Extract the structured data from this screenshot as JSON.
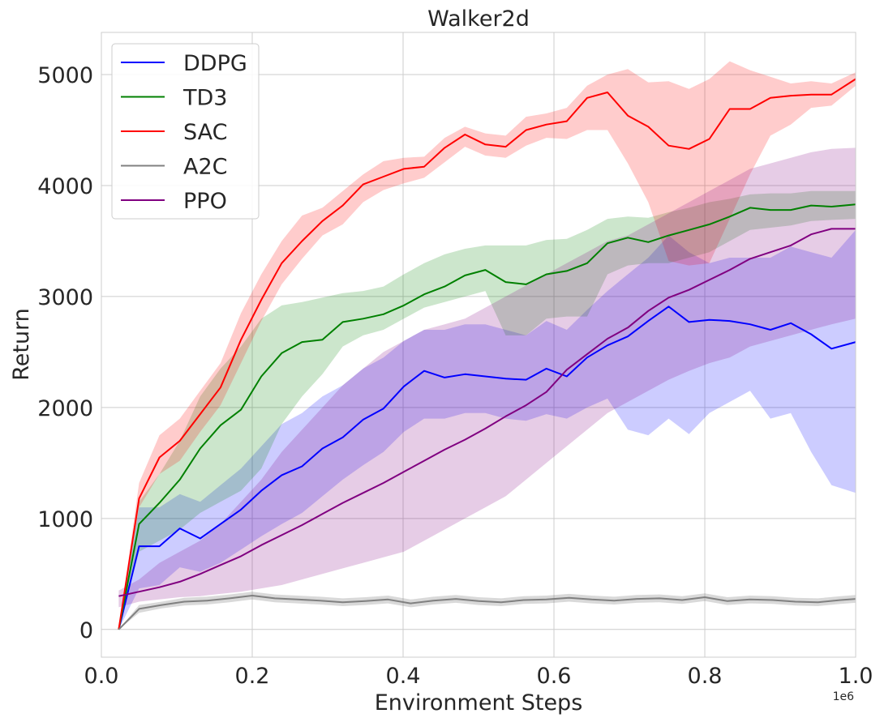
{
  "chart_data": {
    "type": "line",
    "title": "Walker2d",
    "xlabel": "Environment Steps",
    "ylabel": "Return",
    "x_offset_label": "1e6",
    "xlim": [
      0.0,
      1.0
    ],
    "ylim": [
      -250,
      5380
    ],
    "xticks": [
      0.0,
      0.2,
      0.4,
      0.6,
      0.8,
      1.0
    ],
    "xtick_labels": [
      "0.0",
      "0.2",
      "0.4",
      "0.6",
      "0.8",
      "1.0"
    ],
    "yticks": [
      0,
      1000,
      2000,
      3000,
      4000,
      5000
    ],
    "ytick_labels": [
      "0",
      "1000",
      "2000",
      "3000",
      "4000",
      "5000"
    ],
    "grid": true,
    "legend_position": "top-left",
    "colors": {
      "DDPG": "#0000ff",
      "TD3": "#008000",
      "SAC": "#ff0000",
      "A2C": "#808080",
      "PPO": "#800080"
    },
    "series": [
      {
        "name": "DDPG",
        "x": [
          0.023,
          0.05,
          0.077,
          0.104,
          0.131,
          0.158,
          0.185,
          0.212,
          0.239,
          0.266,
          0.293,
          0.32,
          0.347,
          0.374,
          0.401,
          0.428,
          0.455,
          0.482,
          0.509,
          0.536,
          0.563,
          0.59,
          0.617,
          0.644,
          0.671,
          0.698,
          0.725,
          0.752,
          0.779,
          0.806,
          0.833,
          0.86,
          0.887,
          0.914,
          0.941,
          0.968,
          1.0
        ],
        "mean": [
          0,
          750,
          750,
          910,
          820,
          950,
          1080,
          1250,
          1390,
          1470,
          1630,
          1730,
          1890,
          1990,
          2190,
          2330,
          2270,
          2300,
          2280,
          2260,
          2250,
          2350,
          2280,
          2450,
          2560,
          2640,
          2780,
          2910,
          2770,
          2790,
          2780,
          2750,
          2700,
          2760,
          2660,
          2530,
          2590
        ],
        "lower": [
          0,
          370,
          400,
          560,
          520,
          600,
          720,
          840,
          950,
          1050,
          1200,
          1350,
          1480,
          1600,
          1780,
          1900,
          1900,
          1950,
          1950,
          1900,
          1880,
          1940,
          1900,
          2000,
          2080,
          1800,
          1750,
          1900,
          1760,
          1950,
          2050,
          2150,
          1900,
          1950,
          1600,
          1300,
          1230
        ],
        "upper": [
          0,
          1100,
          1100,
          1220,
          1150,
          1300,
          1450,
          1650,
          1850,
          1950,
          2100,
          2200,
          2350,
          2450,
          2600,
          2700,
          2700,
          2750,
          2750,
          2700,
          2650,
          2780,
          2700,
          2880,
          3050,
          3200,
          3350,
          3550,
          3400,
          3300,
          3350,
          3350,
          3350,
          3450,
          3400,
          3350,
          3600
        ]
      },
      {
        "name": "TD3",
        "x": [
          0.023,
          0.05,
          0.077,
          0.104,
          0.131,
          0.158,
          0.185,
          0.212,
          0.239,
          0.266,
          0.293,
          0.32,
          0.347,
          0.374,
          0.401,
          0.428,
          0.455,
          0.482,
          0.509,
          0.536,
          0.563,
          0.59,
          0.617,
          0.644,
          0.671,
          0.698,
          0.725,
          0.752,
          0.779,
          0.806,
          0.833,
          0.86,
          0.887,
          0.914,
          0.941,
          0.968,
          1.0
        ],
        "mean": [
          0,
          950,
          1140,
          1350,
          1630,
          1840,
          1980,
          2280,
          2490,
          2590,
          2610,
          2770,
          2800,
          2840,
          2920,
          3020,
          3090,
          3190,
          3240,
          3130,
          3110,
          3200,
          3230,
          3300,
          3480,
          3530,
          3490,
          3550,
          3600,
          3650,
          3720,
          3800,
          3780,
          3780,
          3820,
          3810,
          3830
        ],
        "lower": [
          0,
          700,
          800,
          900,
          1050,
          1150,
          1250,
          1450,
          1850,
          2100,
          2300,
          2550,
          2650,
          2700,
          2800,
          2900,
          2950,
          3000,
          3050,
          2650,
          2650,
          2800,
          2820,
          2820,
          3200,
          3280,
          3300,
          3300,
          3350,
          3400,
          3500,
          3600,
          3620,
          3640,
          3680,
          3690,
          3700
        ],
        "upper": [
          0,
          1150,
          1400,
          1700,
          2100,
          2350,
          2550,
          2800,
          2920,
          2950,
          2990,
          3030,
          3050,
          3090,
          3200,
          3300,
          3380,
          3430,
          3460,
          3460,
          3460,
          3510,
          3520,
          3600,
          3700,
          3720,
          3710,
          3760,
          3800,
          3850,
          3880,
          3920,
          3930,
          3930,
          3950,
          3950,
          3950
        ]
      },
      {
        "name": "SAC",
        "x": [
          0.023,
          0.05,
          0.077,
          0.104,
          0.131,
          0.158,
          0.185,
          0.212,
          0.239,
          0.266,
          0.293,
          0.32,
          0.347,
          0.374,
          0.401,
          0.428,
          0.455,
          0.482,
          0.509,
          0.536,
          0.563,
          0.59,
          0.617,
          0.644,
          0.671,
          0.698,
          0.725,
          0.752,
          0.779,
          0.806,
          0.833,
          0.86,
          0.887,
          0.914,
          0.941,
          0.968,
          1.0
        ],
        "mean": [
          0,
          1180,
          1550,
          1700,
          1940,
          2180,
          2610,
          2970,
          3300,
          3500,
          3680,
          3820,
          4010,
          4080,
          4150,
          4170,
          4340,
          4460,
          4370,
          4350,
          4500,
          4550,
          4580,
          4790,
          4840,
          4630,
          4530,
          4360,
          4330,
          4420,
          4690,
          4690,
          4790,
          4810,
          4820,
          4820,
          4960
        ],
        "lower": [
          0,
          1100,
          1400,
          1520,
          1780,
          2020,
          2400,
          2780,
          3110,
          3340,
          3550,
          3650,
          3850,
          3960,
          4020,
          4070,
          4210,
          4350,
          4270,
          4250,
          4360,
          4430,
          4420,
          4500,
          4500,
          4200,
          3850,
          3320,
          3280,
          3300,
          3700,
          4100,
          4450,
          4550,
          4700,
          4720,
          4900
        ],
        "upper": [
          0,
          1320,
          1750,
          1900,
          2150,
          2400,
          2850,
          3200,
          3500,
          3730,
          3800,
          3950,
          4100,
          4220,
          4250,
          4260,
          4430,
          4530,
          4470,
          4450,
          4620,
          4650,
          4700,
          4900,
          5000,
          5050,
          4930,
          4940,
          4870,
          4960,
          5120,
          5040,
          4980,
          4920,
          4940,
          4920,
          5020
        ]
      },
      {
        "name": "A2C",
        "x": [
          0.023,
          0.05,
          0.08,
          0.11,
          0.14,
          0.17,
          0.2,
          0.23,
          0.26,
          0.29,
          0.32,
          0.35,
          0.38,
          0.41,
          0.44,
          0.47,
          0.5,
          0.53,
          0.56,
          0.59,
          0.62,
          0.65,
          0.68,
          0.71,
          0.74,
          0.77,
          0.8,
          0.83,
          0.86,
          0.89,
          0.92,
          0.95,
          0.98,
          1.0
        ],
        "mean": [
          0,
          185,
          220,
          250,
          260,
          280,
          305,
          280,
          270,
          260,
          245,
          255,
          270,
          235,
          260,
          275,
          255,
          245,
          265,
          270,
          285,
          270,
          260,
          275,
          280,
          265,
          290,
          255,
          270,
          265,
          250,
          245,
          265,
          275
        ],
        "lower": [
          0,
          150,
          190,
          215,
          225,
          245,
          270,
          245,
          235,
          225,
          210,
          220,
          235,
          200,
          225,
          240,
          220,
          210,
          230,
          235,
          250,
          235,
          225,
          240,
          245,
          230,
          255,
          220,
          235,
          230,
          215,
          210,
          230,
          240
        ],
        "upper": [
          0,
          220,
          250,
          285,
          295,
          315,
          340,
          315,
          305,
          295,
          280,
          290,
          305,
          270,
          295,
          310,
          290,
          280,
          300,
          305,
          320,
          305,
          295,
          310,
          315,
          300,
          325,
          290,
          305,
          300,
          285,
          280,
          300,
          310
        ]
      },
      {
        "name": "PPO",
        "x": [
          0.023,
          0.05,
          0.077,
          0.104,
          0.131,
          0.158,
          0.185,
          0.212,
          0.239,
          0.266,
          0.293,
          0.32,
          0.347,
          0.374,
          0.401,
          0.428,
          0.455,
          0.482,
          0.509,
          0.536,
          0.563,
          0.59,
          0.617,
          0.644,
          0.671,
          0.698,
          0.725,
          0.752,
          0.779,
          0.806,
          0.833,
          0.86,
          0.887,
          0.914,
          0.941,
          0.968,
          1.0
        ],
        "mean": [
          300,
          340,
          380,
          430,
          500,
          580,
          660,
          760,
          850,
          940,
          1040,
          1140,
          1230,
          1320,
          1420,
          1520,
          1620,
          1710,
          1810,
          1920,
          2020,
          2140,
          2340,
          2480,
          2620,
          2720,
          2870,
          2990,
          3060,
          3150,
          3240,
          3340,
          3400,
          3460,
          3560,
          3610,
          3610
        ],
        "lower": [
          200,
          250,
          270,
          290,
          300,
          320,
          340,
          370,
          400,
          450,
          500,
          550,
          600,
          650,
          700,
          800,
          900,
          1000,
          1100,
          1200,
          1350,
          1500,
          1650,
          1800,
          1950,
          2050,
          2150,
          2250,
          2330,
          2400,
          2450,
          2550,
          2600,
          2650,
          2700,
          2750,
          2800
        ],
        "upper": [
          350,
          450,
          600,
          700,
          800,
          950,
          1150,
          1350,
          1600,
          1800,
          2000,
          2200,
          2350,
          2500,
          2600,
          2700,
          2750,
          2800,
          2900,
          3000,
          3100,
          3200,
          3300,
          3400,
          3500,
          3550,
          3650,
          3750,
          3850,
          3950,
          4050,
          4150,
          4200,
          4250,
          4300,
          4330,
          4340
        ]
      }
    ]
  }
}
